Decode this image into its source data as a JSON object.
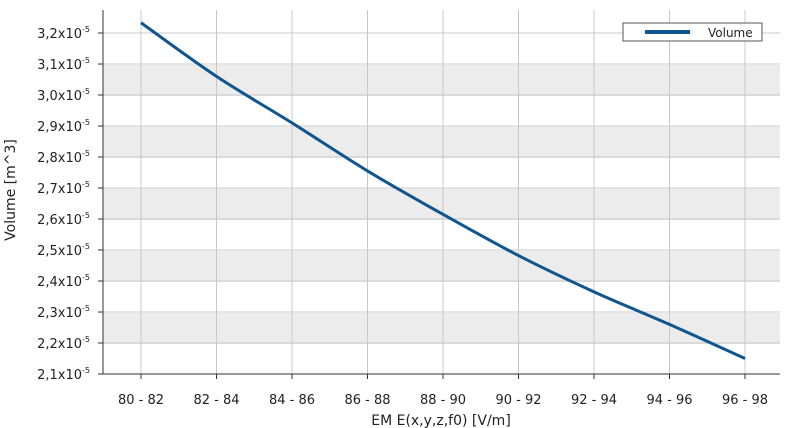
{
  "chart_data": {
    "type": "line",
    "title": "",
    "xlabel": "EM E(x,y,z,f0) [V/m]",
    "ylabel": "Volume [m^3]",
    "categories": [
      "80 - 82",
      "82 - 84",
      "84 - 86",
      "86 - 88",
      "88 - 90",
      "90 - 92",
      "92 - 94",
      "94 - 96",
      "96 - 98"
    ],
    "y_tick_labels": {
      "mantissas": [
        "2,1",
        "2,2",
        "2,3",
        "2,4",
        "2,5",
        "2,6",
        "2,7",
        "2,8",
        "2,9",
        "3,0",
        "3,1",
        "3,2"
      ],
      "base": "x10",
      "exponent": "-5"
    },
    "ylim": [
      2.1e-05,
      3.25e-05
    ],
    "grid": true,
    "legend_position": "top-right",
    "series": [
      {
        "name": "Volume",
        "color": "#0f5590",
        "values": [
          3.233e-05,
          3.06e-05,
          2.91e-05,
          2.755e-05,
          2.615e-05,
          2.482e-05,
          2.365e-05,
          2.26e-05,
          2.15e-05
        ]
      }
    ],
    "colors": {
      "band": "#ececec",
      "grid": "#c8c8c8",
      "axis": "#333333"
    }
  }
}
